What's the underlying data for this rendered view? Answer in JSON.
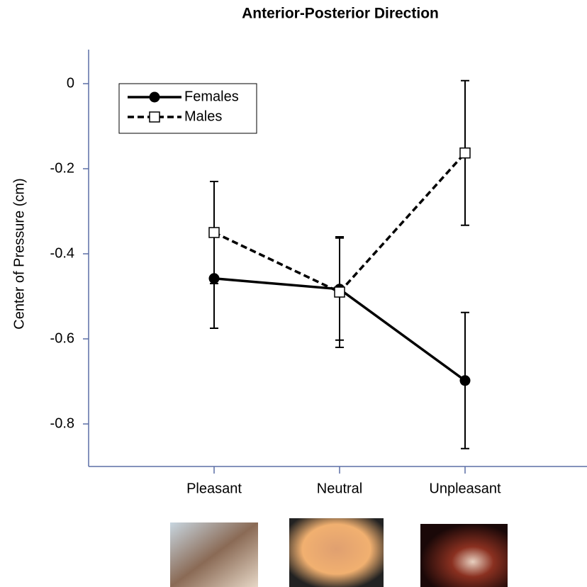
{
  "chart_data": {
    "type": "line",
    "title": "Anterior-Posterior Direction",
    "y_label": "Center of Pressure (cm)",
    "categories": [
      "Pleasant",
      "Neutral",
      "Unpleasant"
    ],
    "series": [
      {
        "name": "Females",
        "color": "#000000",
        "marker": "filled-circle",
        "dashed": false,
        "values": [
          -0.458,
          -0.483,
          -0.698
        ],
        "errors": [
          0.117,
          0.12,
          0.16
        ]
      },
      {
        "name": "Males",
        "color": "#000000",
        "marker": "open-square",
        "dashed": true,
        "values": [
          -0.35,
          -0.49,
          -0.163
        ],
        "errors": [
          0.12,
          0.13,
          0.17
        ]
      }
    ],
    "ylim": [
      -0.9,
      0.08
    ],
    "yticks": [
      0,
      -0.2,
      -0.4,
      -0.6,
      -0.8
    ],
    "legend": "upper-left"
  }
}
